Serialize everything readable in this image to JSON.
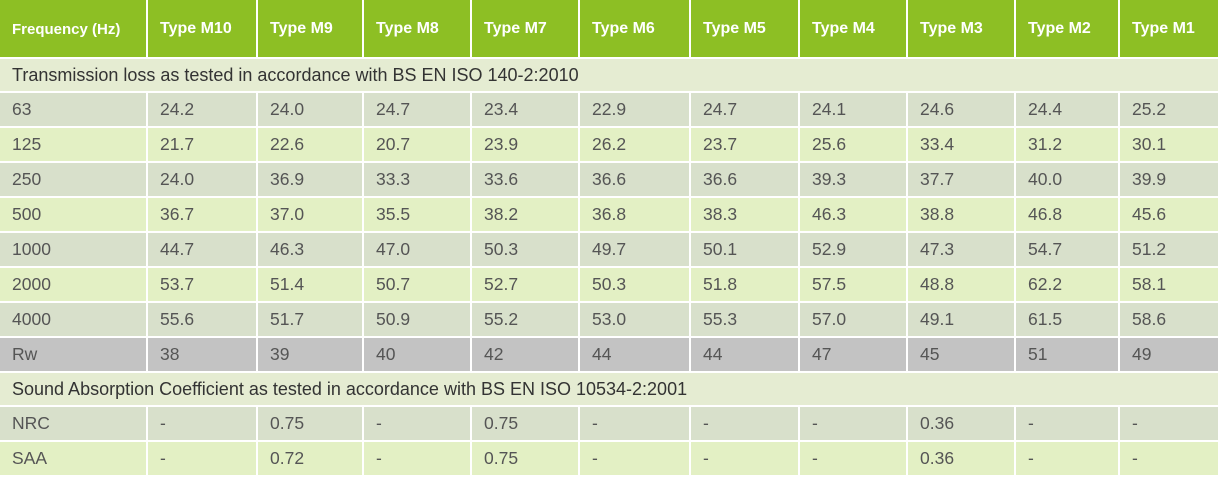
{
  "header": [
    "Frequency (Hz)",
    "Type M10",
    "Type M9",
    "Type M8",
    "Type M7",
    "Type M6",
    "Type M5",
    "Type M4",
    "Type M3",
    "Type M2",
    "Type M1"
  ],
  "sections": [
    {
      "title": "Transmission loss as tested in accordance with BS EN ISO 140-2:2010",
      "rows": [
        [
          "63",
          "24.2",
          "24.0",
          "24.7",
          "23.4",
          "22.9",
          "24.7",
          "24.1",
          "24.6",
          "24.4",
          "25.2"
        ],
        [
          "125",
          "21.7",
          "22.6",
          "20.7",
          "23.9",
          "26.2",
          "23.7",
          "25.6",
          "33.4",
          "31.2",
          "30.1"
        ],
        [
          "250",
          "24.0",
          "36.9",
          "33.3",
          "33.6",
          "36.6",
          "36.6",
          "39.3",
          "37.7",
          "40.0",
          "39.9"
        ],
        [
          "500",
          "36.7",
          "37.0",
          "35.5",
          "38.2",
          "36.8",
          "38.3",
          "46.3",
          "38.8",
          "46.8",
          "45.6"
        ],
        [
          "1000",
          "44.7",
          "46.3",
          "47.0",
          "50.3",
          "49.7",
          "50.1",
          "52.9",
          "47.3",
          "54.7",
          "51.2"
        ],
        [
          "2000",
          "53.7",
          "51.4",
          "50.7",
          "52.7",
          "50.3",
          "51.8",
          "57.5",
          "48.8",
          "62.2",
          "58.1"
        ],
        [
          "4000",
          "55.6",
          "51.7",
          "50.9",
          "55.2",
          "53.0",
          "55.3",
          "57.0",
          "49.1",
          "61.5",
          "58.6"
        ],
        [
          "Rw",
          "38",
          "39",
          "40",
          "42",
          "44",
          "44",
          "47",
          "45",
          "51",
          "49"
        ]
      ]
    },
    {
      "title": "Sound Absorption Coefficient as tested in accordance with BS EN ISO 10534-2:2001",
      "rows": [
        [
          "NRC",
          "-",
          "0.75",
          "-",
          "0.75",
          "-",
          "-",
          "-",
          "0.36",
          "-",
          "-"
        ],
        [
          "SAA",
          "-",
          "0.72",
          "-",
          "0.75",
          "-",
          "-",
          "-",
          "0.36",
          "-",
          "-"
        ]
      ]
    }
  ]
}
